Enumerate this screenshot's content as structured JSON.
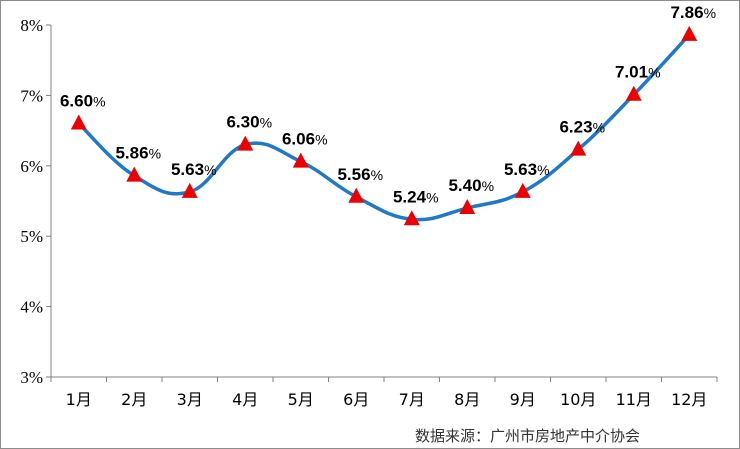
{
  "chart_data": {
    "type": "line",
    "categories": [
      "1月",
      "2月",
      "3月",
      "4月",
      "5月",
      "6月",
      "7月",
      "8月",
      "9月",
      "10月",
      "11月",
      "12月"
    ],
    "values": [
      6.6,
      5.86,
      5.63,
      6.3,
      6.06,
      5.56,
      5.24,
      5.4,
      5.63,
      6.23,
      7.01,
      7.86
    ],
    "data_labels": [
      "6.60",
      "5.86",
      "5.63",
      "6.30",
      "6.06",
      "5.56",
      "5.24",
      "5.40",
      "5.63",
      "6.23",
      "7.01",
      "7.86"
    ],
    "value_suffix": "%",
    "yticks": [
      "3%",
      "4%",
      "5%",
      "6%",
      "7%",
      "8%"
    ],
    "ylim": [
      3,
      8
    ],
    "grid": false,
    "line_color": "#1f78c8",
    "marker": "triangle",
    "marker_color": "#ee0000"
  },
  "source": "数据来源：广州市房地产中介协会"
}
